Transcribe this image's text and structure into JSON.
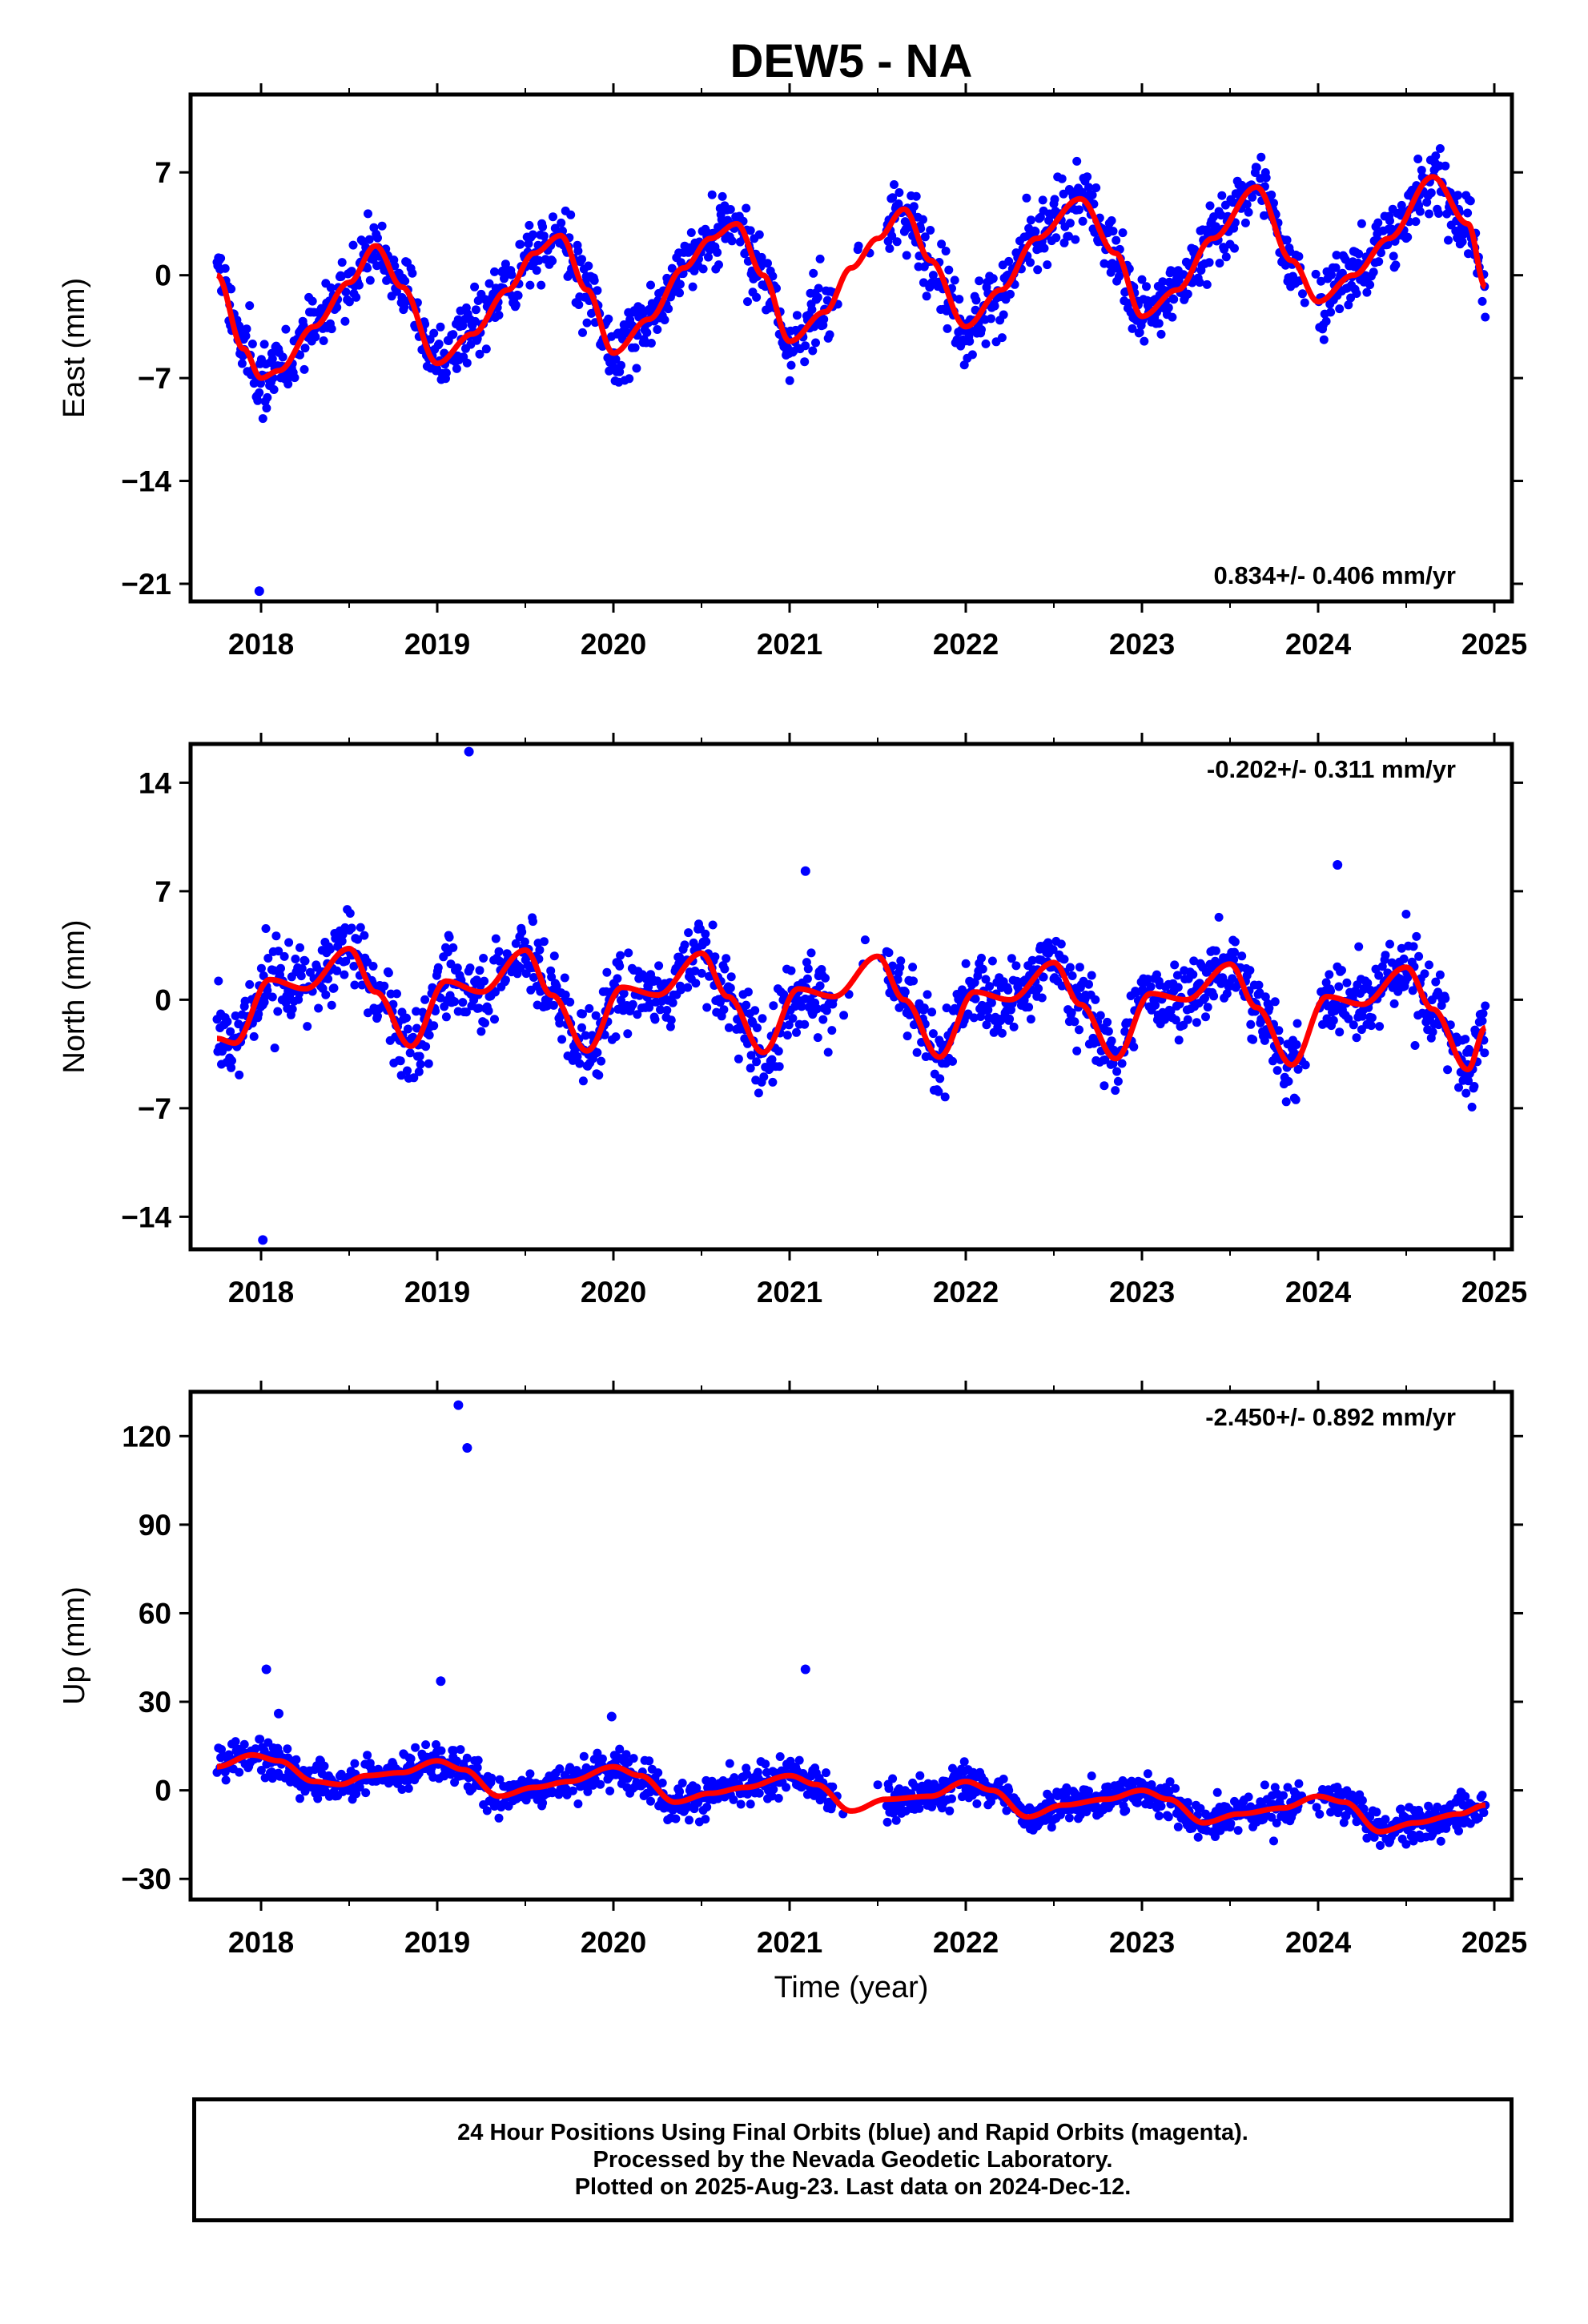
{
  "title": "DEW5 - NA",
  "xlabel": "Time (year)",
  "footer": {
    "line1": "24 Hour Positions Using Final Orbits (blue) and Rapid Orbits (magenta).",
    "line2": "Processed by the Nevada Geodetic Laboratory.",
    "line3": "Plotted on 2025-Aug-23. Last data on 2024-Dec-12."
  },
  "colors": {
    "points": "#0000ff",
    "fit": "#ff0000",
    "frame": "#000000"
  },
  "chart_data": [
    {
      "type": "scatter",
      "name": "east-panel",
      "ylabel": "East (mm)",
      "rate_label": "0.834+/- 0.406 mm/yr",
      "rate_position": "bottom-right",
      "xlim": [
        2017.6,
        2025.1
      ],
      "ylim": [
        -22.2,
        12.3
      ],
      "xticks": [
        2018,
        2019,
        2020,
        2021,
        2022,
        2023,
        2024,
        2025
      ],
      "yticks": [
        -21,
        -14,
        -7,
        0,
        7
      ],
      "fit_curve": {
        "x": [
          2017.75,
          2017.9,
          2018.0,
          2018.1,
          2018.3,
          2018.5,
          2018.65,
          2018.8,
          2019.0,
          2019.2,
          2019.4,
          2019.55,
          2019.7,
          2019.85,
          2020.0,
          2020.2,
          2020.4,
          2020.55,
          2020.7,
          2020.85,
          2021.0,
          2021.2,
          2021.35,
          2021.5,
          2021.65,
          2021.8,
          2022.0,
          2022.2,
          2022.4,
          2022.65,
          2022.85,
          2023.0,
          2023.2,
          2023.4,
          2023.65,
          2023.85,
          2024.0,
          2024.2,
          2024.4,
          2024.65,
          2024.85,
          2024.95
        ],
        "y": [
          0.0,
          -5.0,
          -7.0,
          -6.5,
          -3.5,
          -0.5,
          2.0,
          -0.8,
          -6.0,
          -4.0,
          -1.0,
          1.5,
          2.7,
          -1.0,
          -5.3,
          -3.0,
          0.5,
          2.5,
          3.5,
          0.0,
          -4.5,
          -2.5,
          0.5,
          2.5,
          4.5,
          1.0,
          -3.5,
          -1.0,
          2.5,
          5.2,
          1.5,
          -2.8,
          -1.0,
          2.5,
          6.0,
          1.0,
          -1.8,
          0.0,
          2.5,
          6.7,
          3.5,
          -0.8
        ]
      },
      "outliers": [
        [
          2017.99,
          -21.5
        ]
      ]
    },
    {
      "type": "scatter",
      "name": "north-panel",
      "ylabel": "North (mm)",
      "rate_label": "-0.202+/- 0.311 mm/yr",
      "rate_position": "top-right",
      "xlim": [
        2017.6,
        2025.1
      ],
      "ylim": [
        -16.1,
        16.5
      ],
      "xticks": [
        2018,
        2019,
        2020,
        2021,
        2022,
        2023,
        2024,
        2025
      ],
      "yticks": [
        -14,
        -7,
        0,
        7,
        14
      ],
      "fit_curve": {
        "x": [
          2017.75,
          2017.85,
          2018.05,
          2018.25,
          2018.5,
          2018.65,
          2018.85,
          2019.05,
          2019.25,
          2019.5,
          2019.65,
          2019.85,
          2020.05,
          2020.25,
          2020.5,
          2020.65,
          2020.85,
          2021.05,
          2021.25,
          2021.5,
          2021.65,
          2021.85,
          2022.05,
          2022.25,
          2022.5,
          2022.65,
          2022.85,
          2023.05,
          2023.25,
          2023.5,
          2023.65,
          2023.85,
          2024.05,
          2024.25,
          2024.5,
          2024.65,
          2024.85,
          2024.95
        ],
        "y": [
          -2.5,
          -2.8,
          1.3,
          0.7,
          3.3,
          0.5,
          -3.0,
          1.2,
          0.5,
          3.2,
          0.3,
          -3.3,
          0.8,
          0.3,
          3.0,
          0.2,
          -3.4,
          0.7,
          0.2,
          2.8,
          0.0,
          -3.7,
          0.5,
          0.0,
          2.4,
          -0.3,
          -3.8,
          0.4,
          0.0,
          2.3,
          -0.5,
          -4.2,
          0.2,
          -0.3,
          2.1,
          -0.6,
          -4.5,
          -1.8
        ]
      },
      "outliers": [
        [
          2018.01,
          -15.5
        ],
        [
          2019.18,
          16.0
        ],
        [
          2021.09,
          8.3
        ],
        [
          2024.11,
          8.7
        ]
      ]
    },
    {
      "type": "scatter",
      "name": "up-panel",
      "ylabel": "Up (mm)",
      "rate_label": "-2.450+/- 0.892 mm/yr",
      "rate_position": "top-right",
      "xlim": [
        2017.6,
        2025.1
      ],
      "ylim": [
        -37,
        135
      ],
      "xticks": [
        2018,
        2019,
        2020,
        2021,
        2022,
        2023,
        2024,
        2025
      ],
      "yticks": [
        -30,
        0,
        30,
        60,
        90,
        120
      ],
      "fit_curve": {
        "x": [
          2017.75,
          2017.95,
          2018.1,
          2018.3,
          2018.45,
          2018.6,
          2018.8,
          2019.0,
          2019.15,
          2019.35,
          2019.55,
          2019.75,
          2020.0,
          2020.15,
          2020.35,
          2020.55,
          2020.75,
          2021.0,
          2021.15,
          2021.35,
          2021.55,
          2021.8,
          2022.0,
          2022.15,
          2022.35,
          2022.55,
          2022.8,
          2023.0,
          2023.15,
          2023.35,
          2023.55,
          2023.8,
          2024.0,
          2024.15,
          2024.35,
          2024.55,
          2024.8,
          2024.95
        ],
        "y": [
          8,
          12,
          10,
          3,
          2,
          5,
          6,
          10,
          7,
          -2,
          1,
          3,
          8,
          5,
          -4,
          -1,
          1,
          5,
          2,
          -7,
          -3,
          -2,
          3,
          0,
          -9,
          -5,
          -3,
          0,
          -3,
          -11,
          -8,
          -6,
          -2,
          -4,
          -14,
          -11,
          -8,
          -5
        ]
      },
      "outliers": [
        [
          2019.02,
          37.0
        ],
        [
          2019.12,
          130.5
        ],
        [
          2019.17,
          116.0
        ],
        [
          2018.03,
          41.0
        ],
        [
          2021.09,
          41.0
        ],
        [
          2018.1,
          26.0
        ],
        [
          2019.99,
          25.0
        ]
      ]
    }
  ]
}
